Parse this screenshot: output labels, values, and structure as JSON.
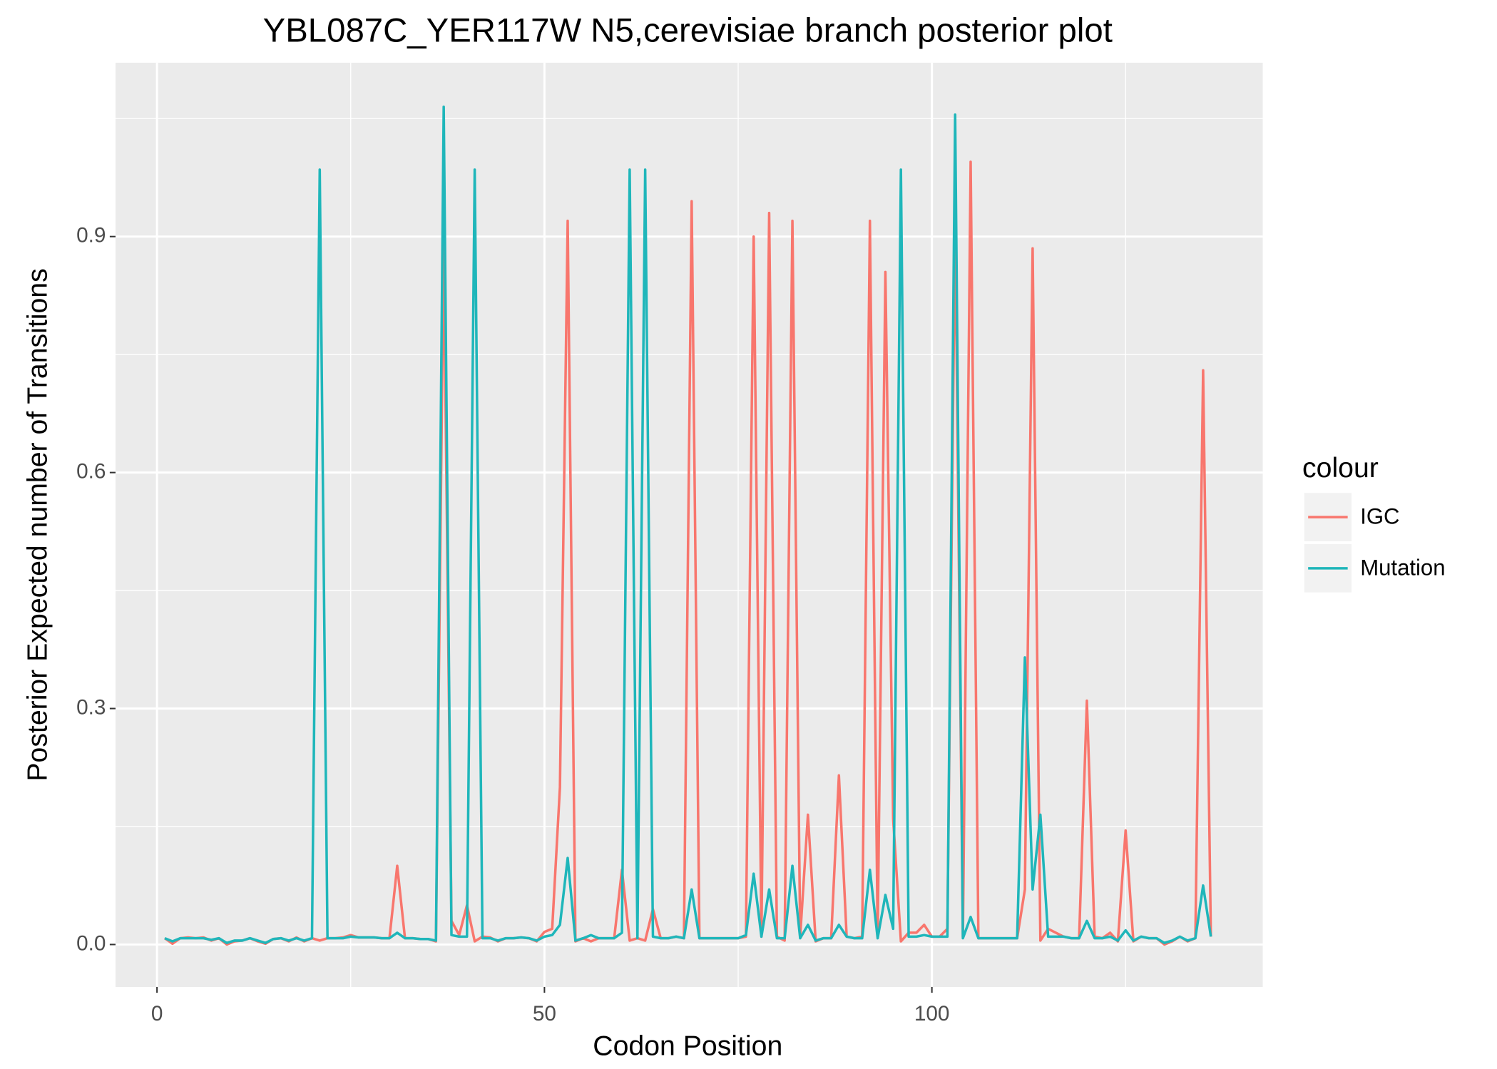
{
  "chart_data": {
    "type": "line",
    "title": "YBL087C_YER117W N5,cerevisiae branch posterior plot",
    "x_label": "Codon Position",
    "y_label": "Posterior Expected number of Transitions",
    "legend_title": "colour",
    "legend": "right",
    "grid": true,
    "xlim": [
      -5.35,
      142.7
    ],
    "ylim": [
      -0.054,
      1.121
    ],
    "xticks": [
      0,
      50,
      100
    ],
    "xminor": [
      25,
      75,
      125
    ],
    "yticks": [
      {
        "value": 0,
        "label": "0.0"
      },
      0.3,
      0.6,
      0.9
    ],
    "yminor": [
      0.15,
      0.45,
      0.75,
      1.05
    ],
    "x": [
      1,
      2,
      3,
      4,
      5,
      6,
      7,
      8,
      9,
      10,
      11,
      12,
      13,
      14,
      15,
      16,
      17,
      18,
      19,
      20,
      21,
      22,
      23,
      24,
      25,
      26,
      27,
      28,
      29,
      30,
      31,
      32,
      33,
      34,
      35,
      36,
      37,
      38,
      39,
      40,
      41,
      42,
      43,
      44,
      45,
      46,
      47,
      48,
      49,
      50,
      51,
      52,
      53,
      54,
      55,
      56,
      57,
      58,
      59,
      60,
      61,
      62,
      63,
      64,
      65,
      66,
      67,
      68,
      69,
      70,
      71,
      72,
      73,
      74,
      75,
      76,
      77,
      78,
      79,
      80,
      81,
      82,
      83,
      84,
      85,
      86,
      87,
      88,
      89,
      90,
      91,
      92,
      93,
      94,
      95,
      96,
      97,
      98,
      99,
      100,
      101,
      102,
      103,
      104,
      105,
      106,
      107,
      108,
      109,
      110,
      111,
      112,
      113,
      114,
      115,
      116,
      117,
      118,
      119,
      120,
      121,
      122,
      123,
      124,
      125,
      126,
      127,
      128,
      129,
      130,
      131,
      132,
      133,
      134,
      135,
      136
    ],
    "series": [
      {
        "name": "IGC",
        "color": "#F8766D",
        "values": [
          0.008,
          0.001,
          0.008,
          0.009,
          0.008,
          0.009,
          0.005,
          0.008,
          0.0,
          0.004,
          0.005,
          0.008,
          0.004,
          0.001,
          0.007,
          0.008,
          0.004,
          0.009,
          0.004,
          0.008,
          0.005,
          0.008,
          0.008,
          0.009,
          0.012,
          0.009,
          0.009,
          0.009,
          0.008,
          0.008,
          0.1,
          0.008,
          0.008,
          0.007,
          0.007,
          0.004,
          0.895,
          0.03,
          0.012,
          0.05,
          0.004,
          0.01,
          0.009,
          0.004,
          0.008,
          0.008,
          0.009,
          0.008,
          0.004,
          0.016,
          0.02,
          0.2,
          0.92,
          0.004,
          0.008,
          0.004,
          0.008,
          0.008,
          0.008,
          0.095,
          0.005,
          0.008,
          0.005,
          0.045,
          0.008,
          0.008,
          0.01,
          0.008,
          0.945,
          0.008,
          0.008,
          0.008,
          0.008,
          0.008,
          0.008,
          0.01,
          0.9,
          0.01,
          0.93,
          0.01,
          0.005,
          0.92,
          0.01,
          0.165,
          0.004,
          0.008,
          0.008,
          0.215,
          0.01,
          0.008,
          0.01,
          0.92,
          0.01,
          0.855,
          0.16,
          0.004,
          0.015,
          0.015,
          0.025,
          0.01,
          0.01,
          0.02,
          0.925,
          0.01,
          0.995,
          0.008,
          0.008,
          0.008,
          0.008,
          0.008,
          0.008,
          0.07,
          0.885,
          0.005,
          0.02,
          0.015,
          0.01,
          0.008,
          0.008,
          0.31,
          0.01,
          0.008,
          0.015,
          0.004,
          0.145,
          0.004,
          0.01,
          0.008,
          0.008,
          0.0,
          0.004,
          0.01,
          0.004,
          0.008,
          0.73,
          0.01
        ]
      },
      {
        "name": "Mutation",
        "color": "#1FB6BA",
        "values": [
          0.008,
          0.004,
          0.008,
          0.008,
          0.008,
          0.008,
          0.006,
          0.008,
          0.002,
          0.005,
          0.005,
          0.008,
          0.005,
          0.002,
          0.007,
          0.008,
          0.005,
          0.008,
          0.005,
          0.008,
          0.985,
          0.008,
          0.008,
          0.008,
          0.01,
          0.009,
          0.009,
          0.009,
          0.008,
          0.008,
          0.015,
          0.008,
          0.008,
          0.007,
          0.007,
          0.005,
          1.065,
          0.012,
          0.01,
          0.01,
          0.985,
          0.008,
          0.008,
          0.005,
          0.008,
          0.008,
          0.009,
          0.008,
          0.005,
          0.01,
          0.012,
          0.025,
          0.11,
          0.005,
          0.008,
          0.012,
          0.008,
          0.008,
          0.008,
          0.015,
          0.985,
          0.008,
          0.985,
          0.01,
          0.008,
          0.008,
          0.01,
          0.008,
          0.07,
          0.008,
          0.008,
          0.008,
          0.008,
          0.008,
          0.008,
          0.012,
          0.09,
          0.01,
          0.07,
          0.008,
          0.008,
          0.1,
          0.008,
          0.025,
          0.005,
          0.008,
          0.008,
          0.025,
          0.01,
          0.008,
          0.008,
          0.095,
          0.008,
          0.063,
          0.02,
          0.985,
          0.01,
          0.01,
          0.012,
          0.01,
          0.01,
          0.01,
          1.055,
          0.008,
          0.035,
          0.008,
          0.008,
          0.008,
          0.008,
          0.008,
          0.008,
          0.365,
          0.07,
          0.165,
          0.01,
          0.01,
          0.01,
          0.008,
          0.008,
          0.03,
          0.008,
          0.008,
          0.01,
          0.005,
          0.018,
          0.005,
          0.01,
          0.008,
          0.008,
          0.002,
          0.005,
          0.01,
          0.005,
          0.008,
          0.075,
          0.01
        ]
      }
    ]
  }
}
